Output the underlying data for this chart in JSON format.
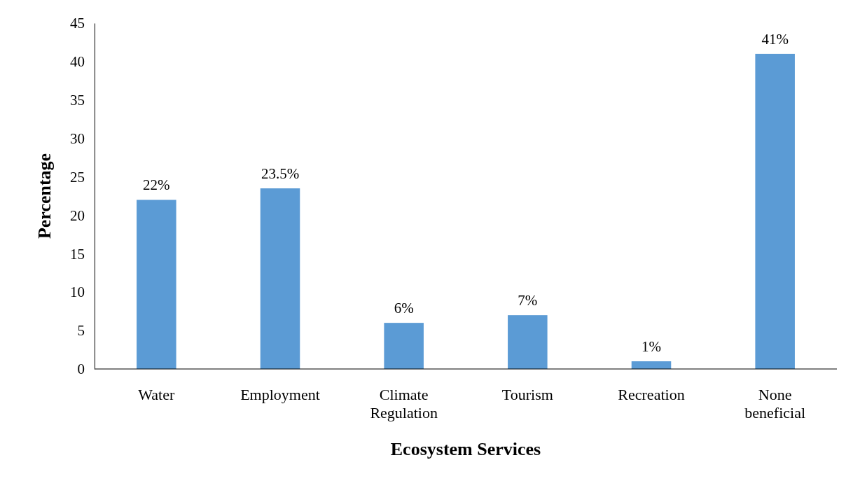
{
  "chart_data": {
    "type": "bar",
    "xlabel": "Ecosystem Services",
    "ylabel": "Percentage",
    "categories": [
      "Water",
      "Employment",
      "Climate Regulation",
      "Tourism",
      "Recreation",
      "None beneficial"
    ],
    "values": [
      22,
      23.5,
      6,
      7,
      1,
      41
    ],
    "value_labels": [
      "22%",
      "23.5%",
      "6%",
      "7%",
      "1%",
      "41%"
    ],
    "color": "#5b9bd5",
    "ylim": [
      0,
      45
    ],
    "yticks": [
      0,
      5,
      10,
      15,
      20,
      25,
      30,
      35,
      40,
      45
    ],
    "grid": false
  }
}
